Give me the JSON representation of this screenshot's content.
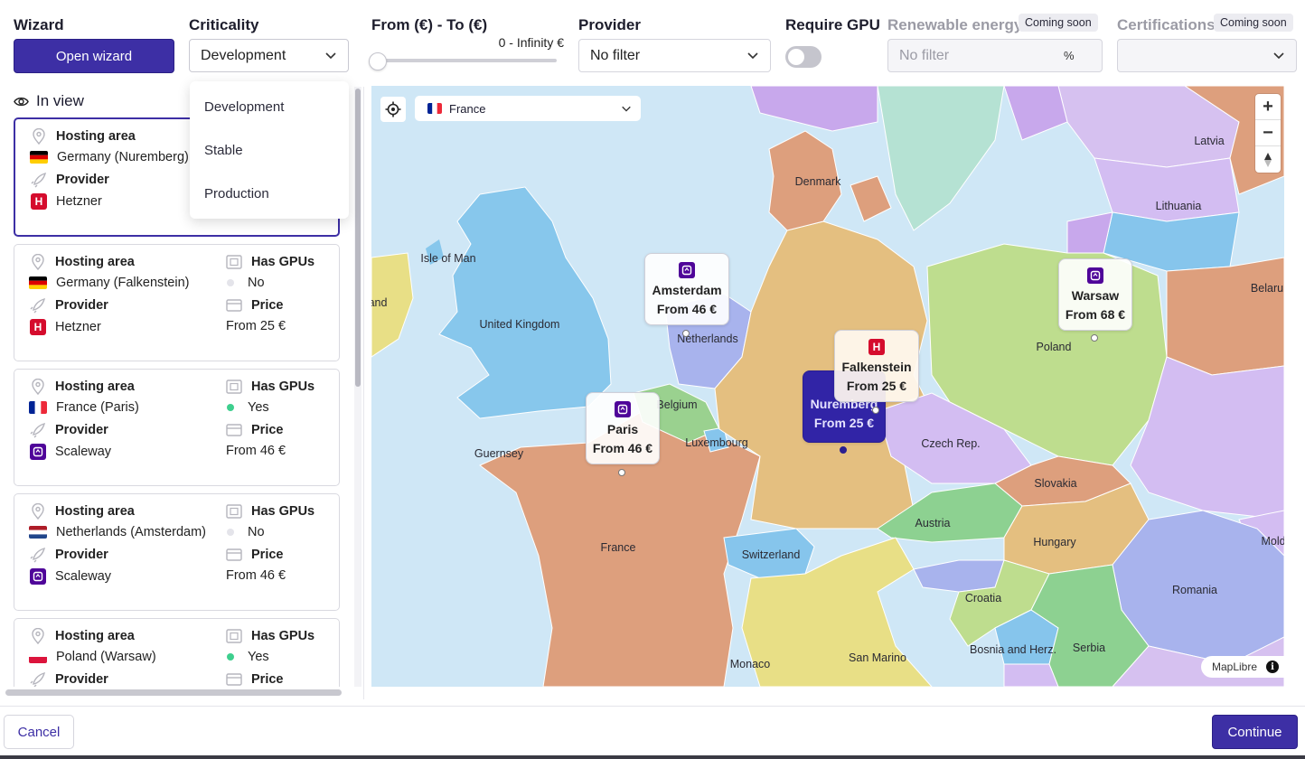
{
  "filters": {
    "wizard": {
      "label": "Wizard",
      "button": "Open wizard"
    },
    "criticality": {
      "label": "Criticality",
      "value": "Development",
      "options": [
        "Development",
        "Stable",
        "Production"
      ]
    },
    "price": {
      "label": "From (€) - To (€)",
      "range_text": "0 - Infinity €",
      "slider_level_percent": 0
    },
    "provider": {
      "label": "Provider",
      "value": "No filter"
    },
    "gpu": {
      "label": "Require GPU",
      "enabled": false
    },
    "renewable": {
      "label": "Renewable energy",
      "badge": "Coming soon",
      "placeholder": "No filter",
      "unit": "%"
    },
    "certifications": {
      "label": "Certifications",
      "badge": "Coming soon",
      "value": ""
    }
  },
  "list": {
    "title": "In view",
    "labels": {
      "hosting_area": "Hosting area",
      "has_gpus": "Has GPUs",
      "provider": "Provider",
      "price": "Price"
    },
    "cards": [
      {
        "area": "Germany (Nuremberg)",
        "flag": "de",
        "provider": "Hetzner",
        "provider_logo": "hetzner",
        "gpus": "",
        "price": "",
        "selected": true
      },
      {
        "area": "Germany (Falkenstein)",
        "flag": "de",
        "provider": "Hetzner",
        "provider_logo": "hetzner",
        "gpus": "No",
        "price": "From 25 €",
        "selected": false
      },
      {
        "area": "France (Paris)",
        "flag": "fr",
        "provider": "Scaleway",
        "provider_logo": "scaleway",
        "gpus": "Yes",
        "price": "From 46 €",
        "selected": false
      },
      {
        "area": "Netherlands (Amsterdam)",
        "flag": "nl",
        "provider": "Scaleway",
        "provider_logo": "scaleway",
        "gpus": "No",
        "price": "From 46 €",
        "selected": false
      },
      {
        "area": "Poland (Warsaw)",
        "flag": "pl",
        "provider": "Provider",
        "provider_logo": "",
        "gpus": "Yes",
        "price": "Price",
        "selected": false
      }
    ]
  },
  "map": {
    "country_select": "France",
    "labels": [
      "Latvia",
      "Lithuania",
      "Denmark",
      "Isle of Man",
      "United Kingdom",
      "and",
      "Netherlands",
      "Belgium",
      "Luxembourg",
      "Guernsey",
      "France",
      "Switzerland",
      "Poland",
      "Belaru",
      "Czech Rep.",
      "Slovakia",
      "Austria",
      "Hungary",
      "Mold",
      "Croatia",
      "Romania",
      "Bosnia and Herz.",
      "Serbia",
      "San Marino",
      "Monaco"
    ],
    "pins": [
      {
        "city": "Amsterdam",
        "price": "From 46 €",
        "logo": "scaleway",
        "active": false
      },
      {
        "city": "Warsaw",
        "price": "From 68 €",
        "logo": "scaleway",
        "active": false
      },
      {
        "city": "Falkenstein",
        "price": "From 25 €",
        "logo": "hetzner",
        "active": false
      },
      {
        "city": "Nuremberg",
        "price": "From 25 €",
        "logo": "hetzner",
        "active": true
      },
      {
        "city": "Paris",
        "price": "From 46 €",
        "logo": "scaleway",
        "active": false
      }
    ],
    "attribution": "MapLibre",
    "zoom_in": "+",
    "zoom_out": "−"
  },
  "footer": {
    "cancel": "Cancel",
    "continue": "Continue"
  },
  "colors": {
    "accent": "#3d2fa5",
    "gpu_yes": "#3ecf8e",
    "gpu_no": "#e4e4ea",
    "hetzner": "#d50c2d",
    "scaleway": "#4f0599"
  }
}
